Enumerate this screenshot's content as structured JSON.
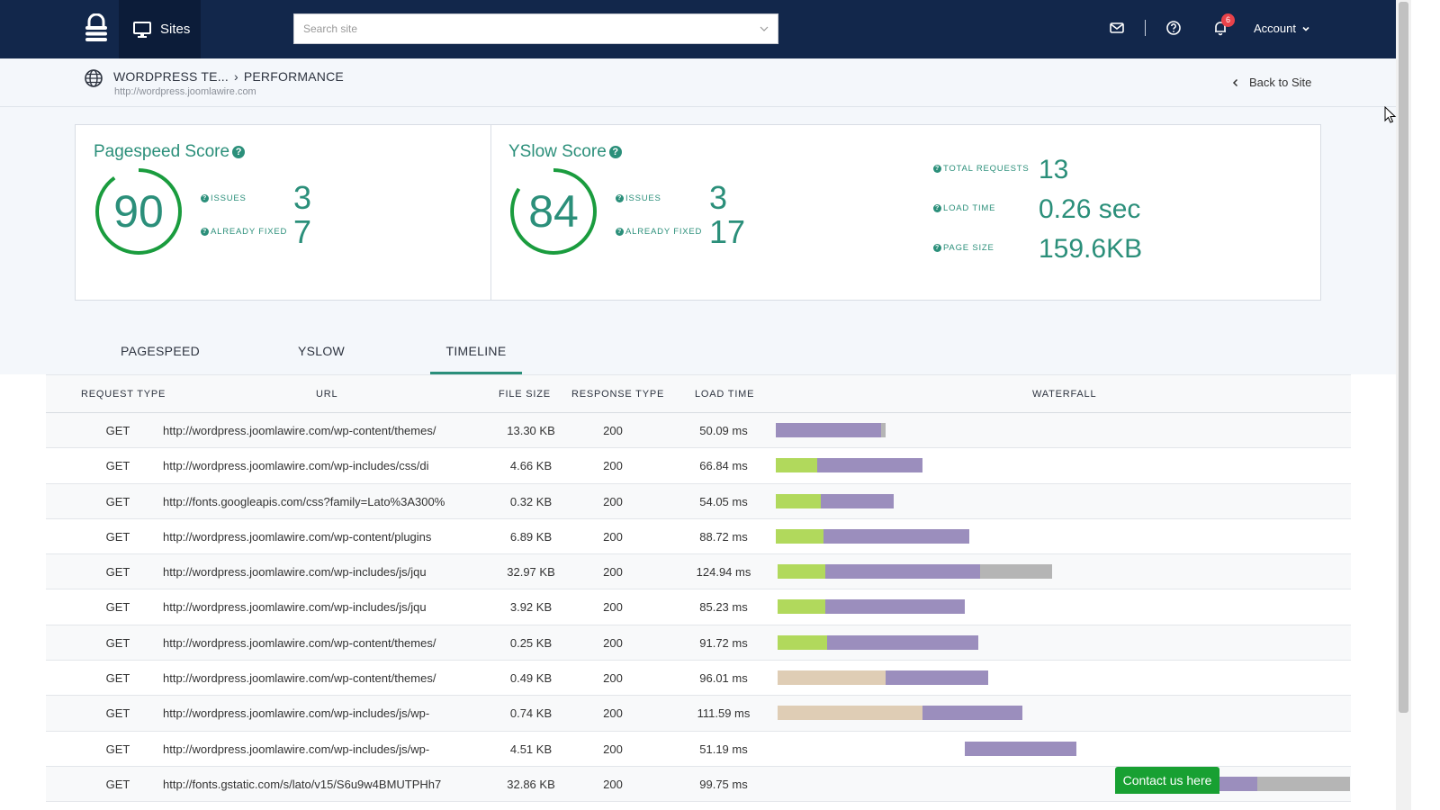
{
  "header": {
    "sites_label": "Sites",
    "search_placeholder": "Search site",
    "notifications_count": "6",
    "account_label": "Account"
  },
  "breadcrumb": {
    "site": "WORDPRESS TE...",
    "separator": "›",
    "page": "PERFORMANCE",
    "url": "http://wordpress.joomlawire.com",
    "back_label": "Back to Site"
  },
  "pagespeed": {
    "title": "Pagespeed Score",
    "score": "90",
    "issues_label": "ISSUES",
    "issues": "3",
    "fixed_label": "ALREADY FIXED",
    "fixed": "7"
  },
  "yslow": {
    "title": "YSlow Score",
    "score": "84",
    "issues_label": "ISSUES",
    "issues": "3",
    "fixed_label": "ALREADY FIXED",
    "fixed": "17"
  },
  "stats": {
    "requests_label": "TOTAL REQUESTS",
    "requests": "13",
    "load_label": "LOAD TIME",
    "load": "0.26 sec",
    "size_label": "PAGE SIZE",
    "size": "159.6KB"
  },
  "tabs": [
    "PAGESPEED",
    "YSLOW",
    "TIMELINE"
  ],
  "active_tab": "TIMELINE",
  "table": {
    "headers": [
      "REQUEST TYPE",
      "URL",
      "FILE SIZE",
      "RESPONSE TYPE",
      "LOAD TIME",
      "WATERFALL"
    ],
    "rows": [
      {
        "type": "GET",
        "url": "http://wordpress.joomlawire.com/wp-content/themes/",
        "size": "13.30 KB",
        "resp": "200",
        "load": "50.09 ms"
      },
      {
        "type": "GET",
        "url": "http://wordpress.joomlawire.com/wp-includes/css/di",
        "size": "4.66 KB",
        "resp": "200",
        "load": "66.84 ms"
      },
      {
        "type": "GET",
        "url": "http://fonts.googleapis.com/css?family=Lato%3A300%",
        "size": "0.32 KB",
        "resp": "200",
        "load": "54.05 ms"
      },
      {
        "type": "GET",
        "url": "http://wordpress.joomlawire.com/wp-content/plugins",
        "size": "6.89 KB",
        "resp": "200",
        "load": "88.72 ms"
      },
      {
        "type": "GET",
        "url": "http://wordpress.joomlawire.com/wp-includes/js/jqu",
        "size": "32.97 KB",
        "resp": "200",
        "load": "124.94 ms"
      },
      {
        "type": "GET",
        "url": "http://wordpress.joomlawire.com/wp-includes/js/jqu",
        "size": "3.92 KB",
        "resp": "200",
        "load": "85.23 ms"
      },
      {
        "type": "GET",
        "url": "http://wordpress.joomlawire.com/wp-content/themes/",
        "size": "0.25 KB",
        "resp": "200",
        "load": "91.72 ms"
      },
      {
        "type": "GET",
        "url": "http://wordpress.joomlawire.com/wp-content/themes/",
        "size": "0.49 KB",
        "resp": "200",
        "load": "96.01 ms"
      },
      {
        "type": "GET",
        "url": "http://wordpress.joomlawire.com/wp-includes/js/wp-",
        "size": "0.74 KB",
        "resp": "200",
        "load": "111.59 ms"
      },
      {
        "type": "GET",
        "url": "http://wordpress.joomlawire.com/wp-includes/js/wp-",
        "size": "4.51 KB",
        "resp": "200",
        "load": "51.19 ms"
      },
      {
        "type": "GET",
        "url": "http://fonts.gstatic.com/s/lato/v15/S6u9w4BMUTPHh7",
        "size": "32.86 KB",
        "resp": "200",
        "load": "99.75 ms"
      }
    ]
  },
  "contact_label": "Contact us here"
}
